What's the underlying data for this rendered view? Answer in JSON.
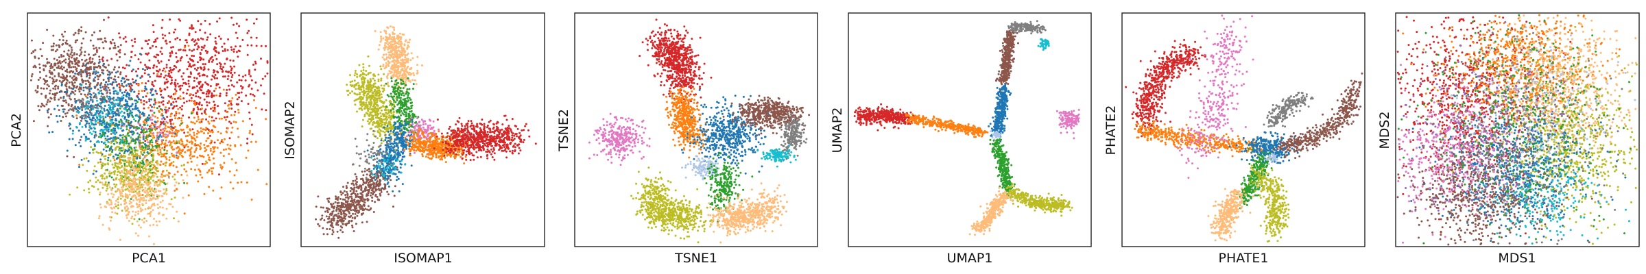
{
  "chart_data": [
    {
      "type": "scatter",
      "xlabel": "PCA1",
      "ylabel": "PCA2",
      "xticks": [],
      "yticks": [],
      "grid": false,
      "legend": "none"
    },
    {
      "type": "scatter",
      "xlabel": "ISOMAP1",
      "ylabel": "ISOMAP2",
      "xticks": [],
      "yticks": [],
      "grid": false,
      "legend": "none"
    },
    {
      "type": "scatter",
      "xlabel": "TSNE1",
      "ylabel": "TSNE2",
      "xticks": [],
      "yticks": [],
      "grid": false,
      "legend": "none"
    },
    {
      "type": "scatter",
      "xlabel": "UMAP1",
      "ylabel": "UMAP2",
      "xticks": [],
      "yticks": [],
      "grid": false,
      "legend": "none"
    },
    {
      "type": "scatter",
      "xlabel": "PHATE1",
      "ylabel": "PHATE2",
      "xticks": [],
      "yticks": [],
      "grid": false,
      "legend": "none"
    },
    {
      "type": "scatter",
      "xlabel": "MDS1",
      "ylabel": "MDS2",
      "xticks": [],
      "yticks": [],
      "grid": false,
      "legend": "none"
    }
  ],
  "cluster_colors": {
    "red": "#d62728",
    "orange": "#ff7f0e",
    "blue": "#1f77b4",
    "green": "#2ca02c",
    "olive": "#bcbd22",
    "peach": "#ffbb78",
    "brown": "#8c564b",
    "gray": "#7f7f7f",
    "cyan": "#17becf",
    "pink": "#e377c2",
    "lightblue": "#aec7e8",
    "purple": "#9467bd"
  }
}
